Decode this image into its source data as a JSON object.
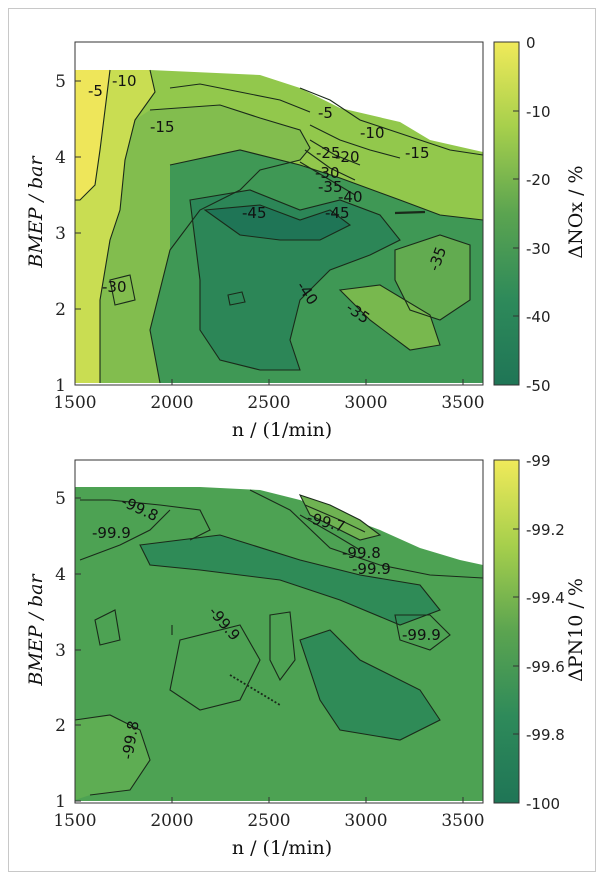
{
  "chart_data": [
    {
      "type": "heatmap",
      "subtype": "contour",
      "xlabel": "n / (1/min)",
      "ylabel": "BMEP / bar",
      "colorbar_label": "ΔNOx / %",
      "xlim": [
        1500,
        3600
      ],
      "ylim": [
        1,
        5.5
      ],
      "xticks": [
        "1500",
        "2000",
        "2500",
        "3000",
        "3500"
      ],
      "yticks": [
        "1",
        "2",
        "3",
        "4",
        "5"
      ],
      "colorbar_range": [
        -50,
        0
      ],
      "colorbar_ticks": [
        "0",
        "-10",
        "-20",
        "-30",
        "-40",
        "-50"
      ],
      "colormap": [
        "#f0ea5a",
        "#a6cf4c",
        "#5ba450",
        "#2e8a5a",
        "#1f7556"
      ],
      "contour_labels": [
        "-5",
        "-10",
        "-15",
        "-5",
        "-10",
        "-15",
        "-20",
        "-25",
        "-30",
        "-35",
        "-40",
        "-45",
        "-45",
        "-35",
        "-30",
        "-40",
        "-35"
      ],
      "grid": false
    },
    {
      "type": "heatmap",
      "subtype": "contour",
      "xlabel": "n / (1/min)",
      "ylabel": "BMEP / bar",
      "colorbar_label": "ΔPN10 / %",
      "xlim": [
        1500,
        3600
      ],
      "ylim": [
        1,
        5.5
      ],
      "xticks": [
        "1500",
        "2000",
        "2500",
        "3000",
        "3500"
      ],
      "yticks": [
        "1",
        "2",
        "3",
        "4",
        "5"
      ],
      "colorbar_range": [
        -100,
        -99
      ],
      "colorbar_ticks": [
        "-99",
        "-99.2",
        "-99.4",
        "-99.6",
        "-99.8",
        "-100"
      ],
      "colormap": [
        "#f0ea5a",
        "#a6cf4c",
        "#5ba450",
        "#2e8a5a",
        "#1f7556"
      ],
      "contour_labels": [
        "-99.8",
        "-99.9",
        "-99.7",
        "-99.8",
        "-99.9",
        "-99.9",
        "-99.9",
        "-99.8"
      ],
      "grid": false
    }
  ]
}
